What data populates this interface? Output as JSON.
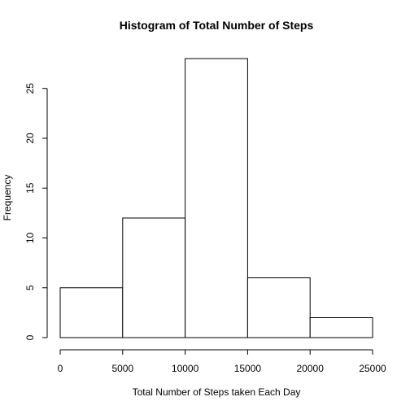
{
  "chart_data": {
    "type": "bar",
    "title": "Histogram of Total Number of Steps",
    "xlabel": "Total Number of Steps taken Each Day",
    "ylabel": "Frequency",
    "bins": [
      {
        "start": 0,
        "end": 5000,
        "value": 5
      },
      {
        "start": 5000,
        "end": 10000,
        "value": 12
      },
      {
        "start": 10000,
        "end": 15000,
        "value": 28
      },
      {
        "start": 15000,
        "end": 20000,
        "value": 6
      },
      {
        "start": 20000,
        "end": 25000,
        "value": 2
      }
    ],
    "xlim": [
      0,
      25000
    ],
    "ylim": [
      0,
      28
    ],
    "xticks": [
      0,
      5000,
      10000,
      15000,
      20000,
      25000
    ],
    "yticks": [
      0,
      5,
      10,
      15,
      20,
      25
    ],
    "grid": false,
    "bar_fill": "#ffffff",
    "bar_stroke": "#000000"
  }
}
